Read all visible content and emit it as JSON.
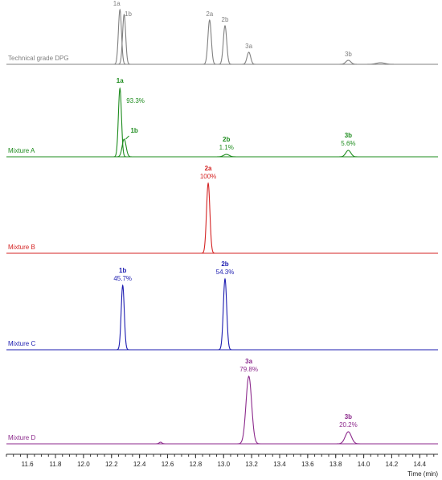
{
  "chart_data": {
    "type": "line",
    "xlabel": "Time (min)",
    "xlim": [
      11.45,
      14.53
    ],
    "xticks": [
      11.6,
      11.8,
      {
        "value": 12.0,
        "label": "12.0"
      },
      12.2,
      12.4,
      12.6,
      12.8,
      {
        "value": 13.0,
        "label": "13.0"
      },
      13.2,
      13.4,
      13.6,
      13.8,
      {
        "value": 14.0,
        "label": "14.0"
      },
      14.2,
      14.4
    ],
    "xminor_step": 0.05,
    "ylim": [
      0,
      100
    ],
    "series": [
      {
        "name": "Technical grade DPG",
        "color": "#808080",
        "peaks": [
          {
            "label": "1a",
            "x": 12.26,
            "height": 68,
            "width": 0.011
          },
          {
            "label": "1b",
            "x": 12.29,
            "height": 62,
            "width": 0.011
          },
          {
            "label": "2a",
            "x": 12.9,
            "height": 55,
            "width": 0.012
          },
          {
            "label": "2b",
            "x": 13.01,
            "height": 48,
            "width": 0.012
          },
          {
            "label": "3a",
            "x": 13.18,
            "height": 15,
            "width": 0.013
          },
          {
            "label": "3b",
            "x": 13.89,
            "height": 5,
            "width": 0.018
          },
          {
            "x": 14.12,
            "height": 2,
            "width": 0.03
          }
        ]
      },
      {
        "name": "Mixture A",
        "color": "#1e8c1e",
        "peaks": [
          {
            "label": "1a",
            "x": 12.26,
            "height": 85,
            "width": 0.011,
            "percent": 93.3,
            "percent_label": "93.3%"
          },
          {
            "label": "1b",
            "x": 12.29,
            "height": 22,
            "width": 0.014
          },
          {
            "label": "2b",
            "x": 13.02,
            "height": 3,
            "width": 0.02,
            "percent": 1.1,
            "percent_label": "1.1%"
          },
          {
            "label": "3b",
            "x": 13.89,
            "height": 8,
            "width": 0.018,
            "percent": 5.6,
            "percent_label": "5.6%"
          }
        ]
      },
      {
        "name": "Mixture B",
        "color": "#d42323",
        "peaks": [
          {
            "label": "2a",
            "x": 12.89,
            "height": 87,
            "width": 0.012,
            "percent": 100,
            "percent_label": "100%"
          }
        ]
      },
      {
        "name": "Mixture C",
        "color": "#1c1cb0",
        "peaks": [
          {
            "label": "1b",
            "x": 12.28,
            "height": 80,
            "width": 0.011,
            "percent": 45.7,
            "percent_label": "45.7%"
          },
          {
            "label": "2b",
            "x": 13.01,
            "height": 88,
            "width": 0.012,
            "percent": 54.3,
            "percent_label": "54.3%"
          }
        ]
      },
      {
        "name": "Mixture D",
        "color": "#8c2a8c",
        "peaks": [
          {
            "x": 12.55,
            "height": 2,
            "width": 0.01
          },
          {
            "label": "3a",
            "x": 13.18,
            "height": 84,
            "width": 0.02,
            "percent": 79.8,
            "percent_label": "79.8%"
          },
          {
            "label": "3b",
            "x": 13.89,
            "height": 15,
            "width": 0.022,
            "percent": 20.2,
            "percent_label": "20.2%"
          }
        ]
      }
    ]
  }
}
